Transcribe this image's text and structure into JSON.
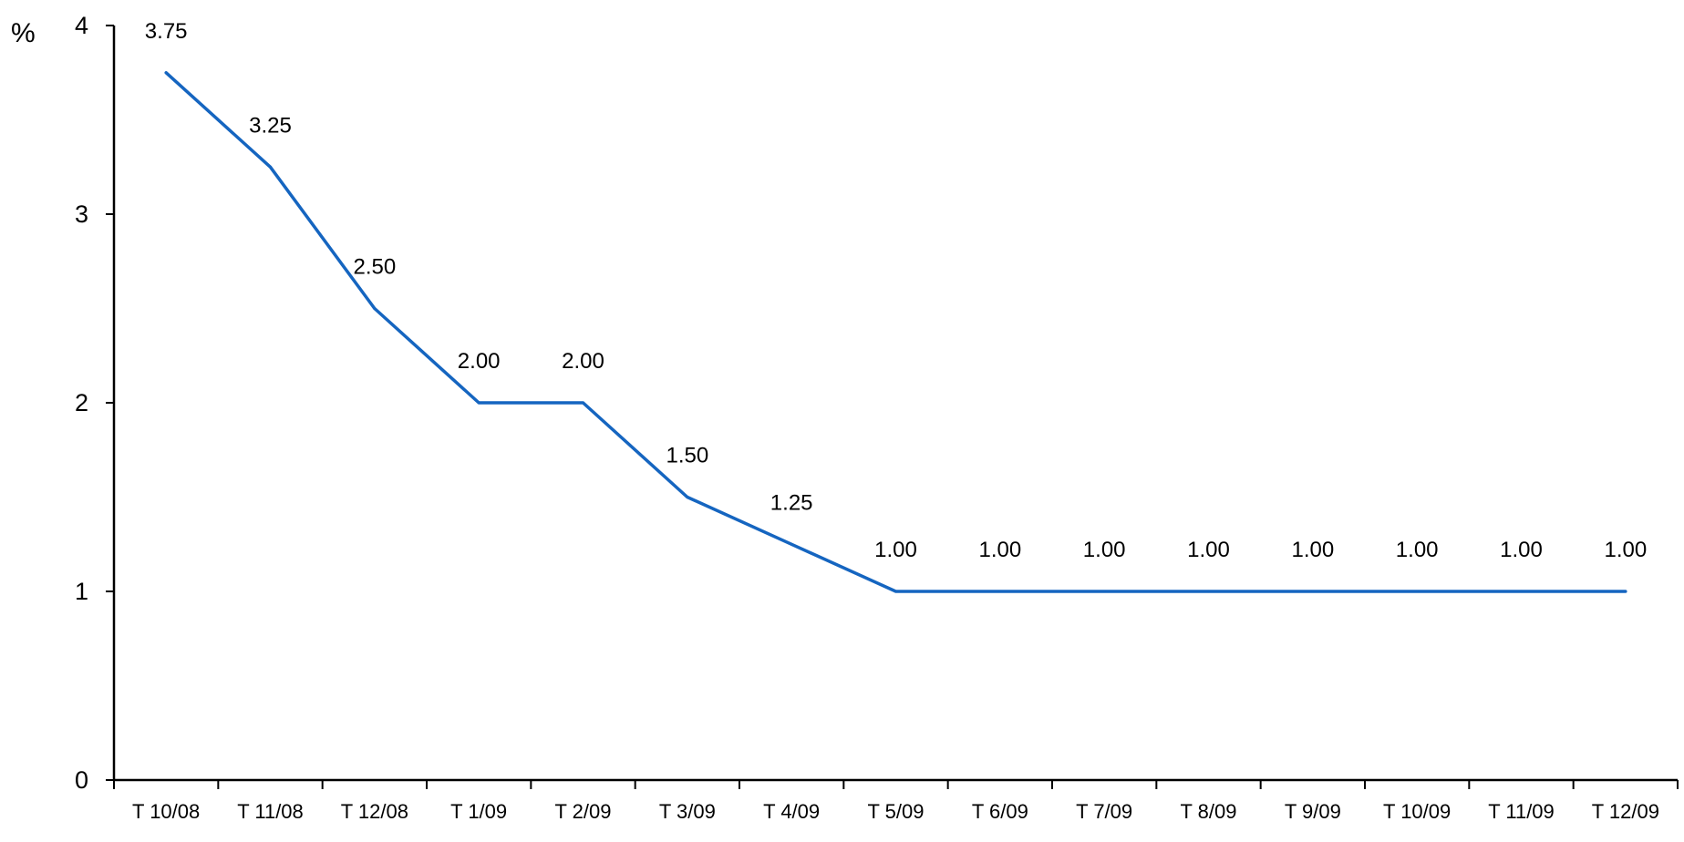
{
  "chart_data": {
    "type": "line",
    "title": "",
    "xlabel": "",
    "ylabel": "%",
    "ylim": [
      0,
      4
    ],
    "yticks": [
      0,
      1,
      2,
      3,
      4
    ],
    "grid": false,
    "legend": "none",
    "colors": {
      "line": "#1565c0",
      "axis": "#000000",
      "text": "#000000"
    },
    "categories": [
      "T 10/08",
      "T 11/08",
      "T 12/08",
      "T 1/09",
      "T 2/09",
      "T 3/09",
      "T 4/09",
      "T 5/09",
      "T 6/09",
      "T 7/09",
      "T 8/09",
      "T 9/09",
      "T 10/09",
      "T 11/09",
      "T 12/09"
    ],
    "series": [
      {
        "values": [
          3.75,
          3.25,
          2.5,
          2.0,
          2.0,
          1.5,
          1.25,
          1.0,
          1.0,
          1.0,
          1.0,
          1.0,
          1.0,
          1.0,
          1.0
        ],
        "data_labels": [
          "3.75",
          "3.25",
          "2.50",
          "2.00",
          "2.00",
          "1.50",
          "1.25",
          "1.00",
          "1.00",
          "1.00",
          "1.00",
          "1.00",
          "1.00",
          "1.00",
          "1.00"
        ]
      }
    ]
  }
}
